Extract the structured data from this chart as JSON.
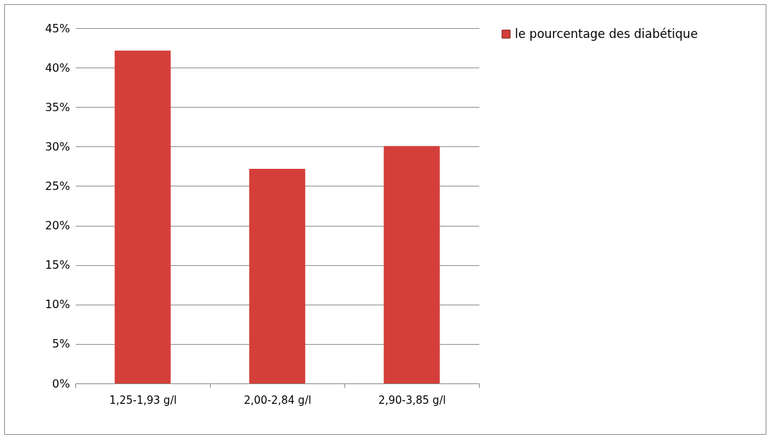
{
  "chart_data": {
    "type": "bar",
    "categories": [
      "1,25-1,93 g/l",
      "2,00-2,84 g/l",
      "2,90-3,85 g/l"
    ],
    "series": [
      {
        "name": "le pourcentage des diabétique",
        "color": "#d43f3a",
        "values": [
          42.2,
          27.2,
          30.1
        ]
      }
    ],
    "ylim": [
      0,
      45
    ],
    "yticks": [
      {
        "value": 0,
        "label": "0%"
      },
      {
        "value": 5,
        "label": "5%"
      },
      {
        "value": 10,
        "label": "10%"
      },
      {
        "value": 15,
        "label": "15%"
      },
      {
        "value": 20,
        "label": "20%"
      },
      {
        "value": 25,
        "label": "25%"
      },
      {
        "value": 30,
        "label": "30%"
      },
      {
        "value": 35,
        "label": "35%"
      },
      {
        "value": 40,
        "label": "40%"
      },
      {
        "value": 45,
        "label": "45%"
      }
    ],
    "grid": "y",
    "legend": "right"
  }
}
